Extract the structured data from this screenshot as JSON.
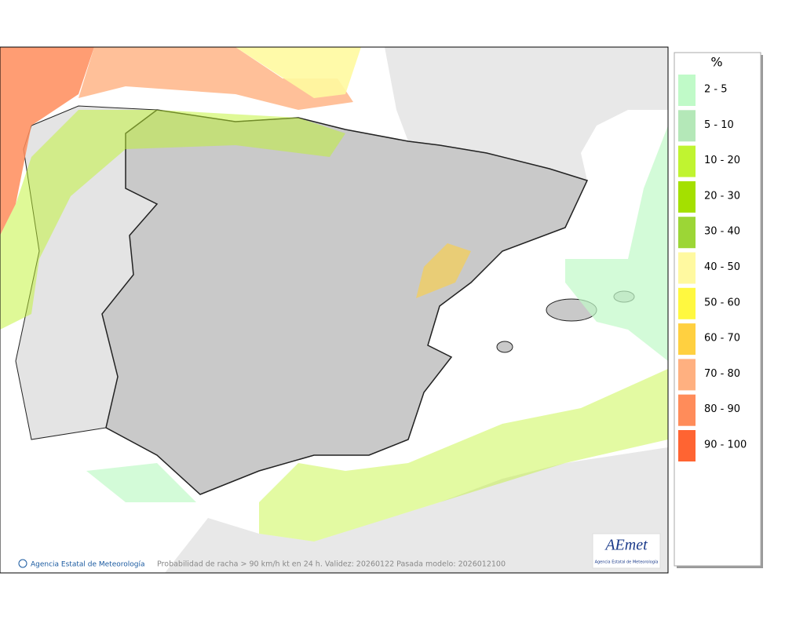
{
  "legend": {
    "title": "%",
    "items": [
      {
        "label": "2 - 5",
        "color": "#c0fac8"
      },
      {
        "label": "5 - 10",
        "color": "#b4e8b8"
      },
      {
        "label": "10 - 20",
        "color": "#c0f430"
      },
      {
        "label": "20 - 30",
        "color": "#a4e000"
      },
      {
        "label": "30 - 40",
        "color": "#9cd636"
      },
      {
        "label": "40 - 50",
        "color": "#fff9a0"
      },
      {
        "label": "50 - 60",
        "color": "#fff840"
      },
      {
        "label": "60 - 70",
        "color": "#ffd040"
      },
      {
        "label": "70 - 80",
        "color": "#ffb080"
      },
      {
        "label": "80 - 90",
        "color": "#ff8c5a"
      },
      {
        "label": "90 - 100",
        "color": "#ff6432"
      }
    ]
  },
  "footer": {
    "credit": "Agencia Estatal de Meteorología",
    "caption": "Probabilidad de racha > 90 km/h kt en 24 h. Validez: 20260122 Pasada modelo: 2026012100"
  },
  "logo": {
    "name": "AEmet",
    "subtitle": "Agencia Estatal de Meteorología"
  }
}
